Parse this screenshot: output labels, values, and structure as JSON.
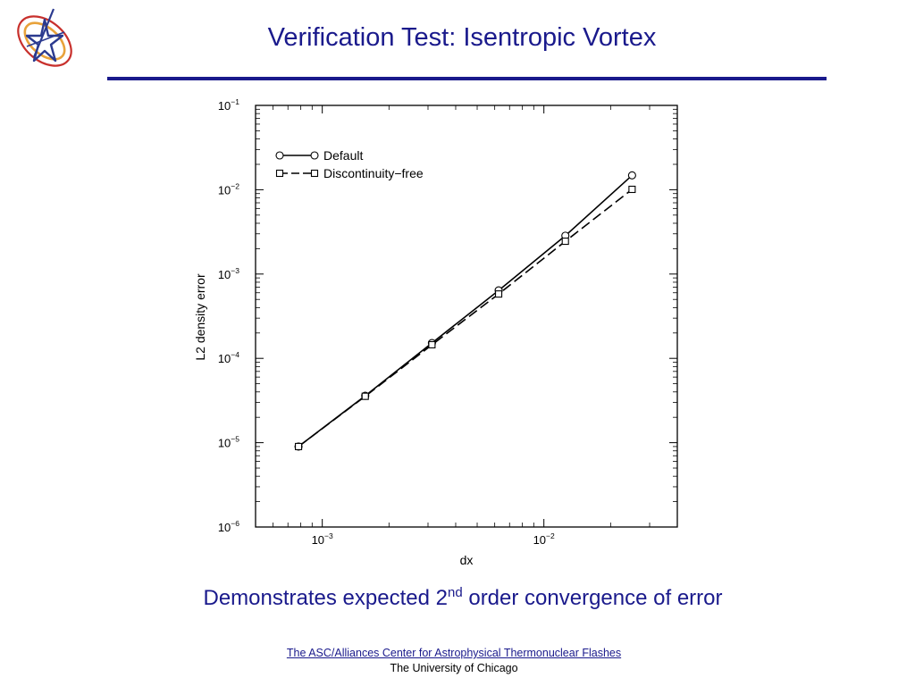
{
  "slide": {
    "title": "Verification Test: Isentropic Vortex",
    "caption_main": "Demonstrates expected 2",
    "caption_sup": "nd",
    "caption_tail": " order convergence of error",
    "footer_link": "The ASC/Alliances Center for Astrophysical Thermonuclear Flashes",
    "footer_univ": "The University of Chicago",
    "colors": {
      "title": "#1a1a8c",
      "rule": "#1a1a8c",
      "logo_star": "#2b3a8f",
      "logo_orbit_inner": "#e8a23a",
      "logo_orbit_outer": "#c8302c"
    },
    "logo_icon": "flash-center-star-logo"
  },
  "chart_data": {
    "type": "line",
    "xscale": "log",
    "yscale": "log",
    "xlabel": "dx",
    "ylabel": "L2 density error",
    "xlim": [
      0.0005,
      0.04
    ],
    "ylim": [
      1e-06,
      0.1
    ],
    "x_ticks": [
      {
        "value": 0.001,
        "base": "10",
        "exp": "−3"
      },
      {
        "value": 0.01,
        "base": "10",
        "exp": "−2"
      }
    ],
    "y_ticks": [
      {
        "value": 0.1,
        "base": "10",
        "exp": "−1"
      },
      {
        "value": 0.01,
        "base": "10",
        "exp": "−2"
      },
      {
        "value": 0.001,
        "base": "10",
        "exp": "−3"
      },
      {
        "value": 0.0001,
        "base": "10",
        "exp": "−4"
      },
      {
        "value": 1e-05,
        "base": "10",
        "exp": "−5"
      },
      {
        "value": 1e-06,
        "base": "10",
        "exp": "−6"
      }
    ],
    "legend_position": "top-left",
    "grid": false,
    "series": [
      {
        "name": "Default",
        "marker": "circle",
        "line": "solid",
        "x": [
          0.00078125,
          0.0015625,
          0.003125,
          0.00625,
          0.0125,
          0.025
        ],
        "y": [
          9e-06,
          3.6e-05,
          0.000152,
          0.00064,
          0.00285,
          0.0148
        ]
      },
      {
        "name": "Discontinuity−free",
        "marker": "square",
        "line": "dashed",
        "x": [
          0.00078125,
          0.0015625,
          0.003125,
          0.00625,
          0.0125,
          0.025
        ],
        "y": [
          9e-06,
          3.55e-05,
          0.000145,
          0.00058,
          0.00245,
          0.0101
        ]
      }
    ]
  }
}
